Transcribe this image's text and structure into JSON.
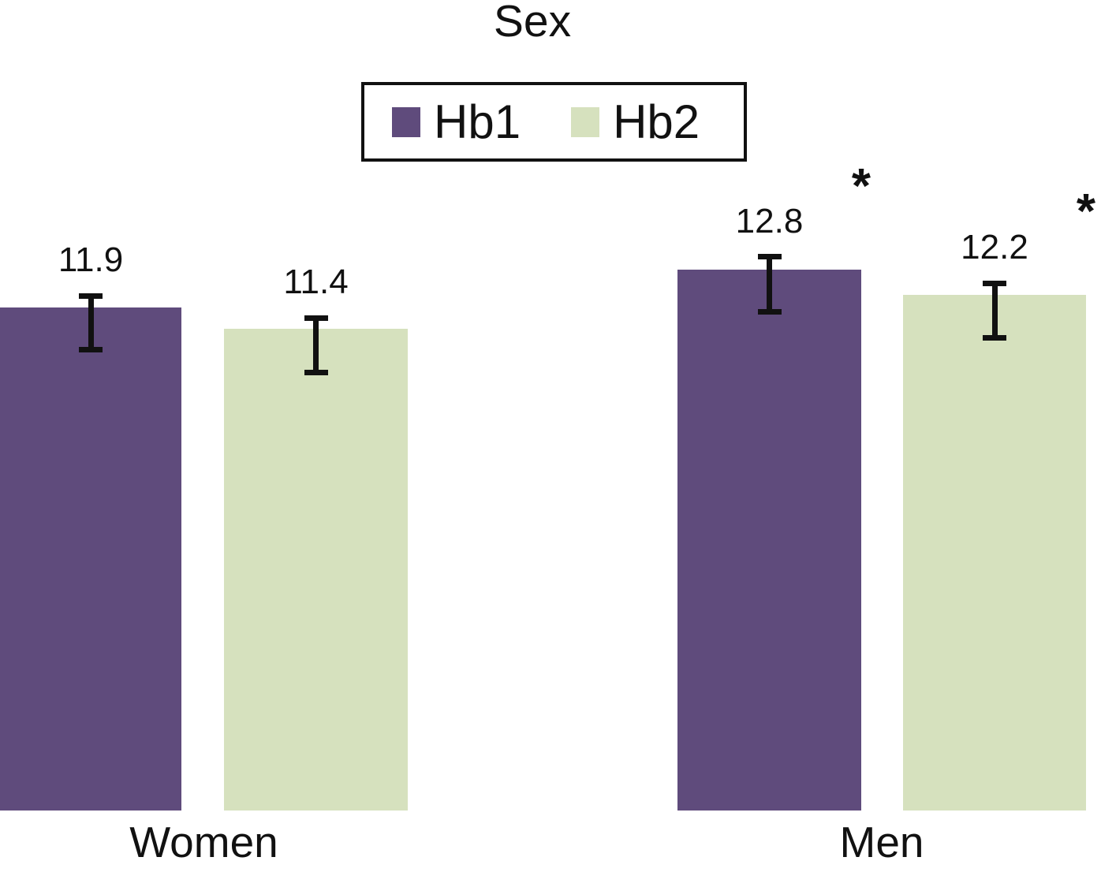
{
  "chart_data": {
    "type": "bar",
    "title": "Sex",
    "categories": [
      "Women",
      "Men"
    ],
    "series": [
      {
        "name": "Hb1",
        "color": "#5f4b7c",
        "values": [
          11.9,
          12.8
        ],
        "value_labels": [
          "11.9",
          "12.8"
        ],
        "error_up": [
          0.28,
          0.3
        ],
        "error_down": [
          1.0,
          1.0
        ],
        "significance": [
          "",
          "*"
        ]
      },
      {
        "name": "Hb2",
        "color": "#d6e1be",
        "values": [
          11.4,
          12.2
        ],
        "value_labels": [
          "11.4",
          "12.2"
        ],
        "error_up": [
          0.26,
          0.28
        ],
        "error_down": [
          1.03,
          1.01
        ],
        "significance": [
          "",
          "*"
        ]
      }
    ],
    "ylim": [
      0,
      19.2
    ],
    "baseline_value": 0,
    "grid": false,
    "axes_shown": false,
    "legend_position": "top-center",
    "significance_marker": "*",
    "error_bar_color": "#111111",
    "background_color": "#ffffff"
  },
  "legend": {
    "items": [
      {
        "label": "Hb1",
        "color": "#5f4b7c"
      },
      {
        "label": "Hb2",
        "color": "#d6e1be"
      }
    ]
  }
}
